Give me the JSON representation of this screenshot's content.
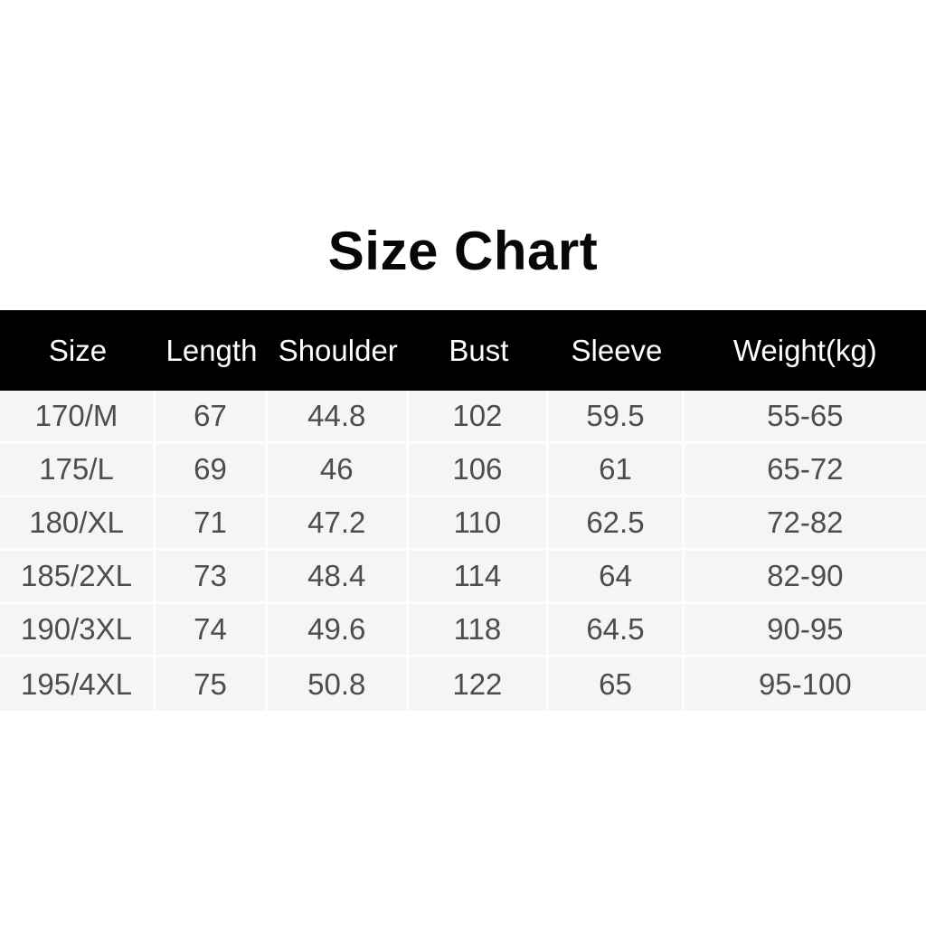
{
  "title": "Size Chart",
  "colors": {
    "page_background": "#ffffff",
    "header_background": "#000000",
    "header_text": "#ffffff",
    "row_background": "#f5f5f6",
    "cell_text": "#4d4d4d",
    "title_text": "#070707",
    "divider": "#fdfdfd"
  },
  "table": {
    "columns": [
      "Size",
      "Length",
      "Shoulder",
      "Bust",
      "Sleeve",
      "Weight(kg)"
    ],
    "rows": [
      [
        "170/M",
        "67",
        "44.8",
        "102",
        "59.5",
        "55-65"
      ],
      [
        "175/L",
        "69",
        "46",
        "106",
        "61",
        "65-72"
      ],
      [
        "180/XL",
        "71",
        "47.2",
        "110",
        "62.5",
        "72-82"
      ],
      [
        "185/2XL",
        "73",
        "48.4",
        "114",
        "64",
        "82-90"
      ],
      [
        "190/3XL",
        "74",
        "49.6",
        "118",
        "64.5",
        "90-95"
      ],
      [
        "195/4XL",
        "75",
        "50.8",
        "122",
        "65",
        "95-100"
      ]
    ]
  },
  "chart_data": {
    "type": "table",
    "title": "Size Chart",
    "columns": [
      "Size",
      "Length",
      "Shoulder",
      "Bust",
      "Sleeve",
      "Weight(kg)"
    ],
    "rows": [
      {
        "size": "170/M",
        "length": 67,
        "shoulder": 44.8,
        "bust": 102,
        "sleeve": 59.5,
        "weight_kg": "55-65"
      },
      {
        "size": "175/L",
        "length": 69,
        "shoulder": 46,
        "bust": 106,
        "sleeve": 61,
        "weight_kg": "65-72"
      },
      {
        "size": "180/XL",
        "length": 71,
        "shoulder": 47.2,
        "bust": 110,
        "sleeve": 62.5,
        "weight_kg": "72-82"
      },
      {
        "size": "185/2XL",
        "length": 73,
        "shoulder": 48.4,
        "bust": 114,
        "sleeve": 64,
        "weight_kg": "82-90"
      },
      {
        "size": "190/3XL",
        "length": 74,
        "shoulder": 49.6,
        "bust": 118,
        "sleeve": 64.5,
        "weight_kg": "90-95"
      },
      {
        "size": "195/4XL",
        "length": 75,
        "shoulder": 50.8,
        "bust": 122,
        "sleeve": 65,
        "weight_kg": "95-100"
      }
    ],
    "layout": {
      "header_style": "black bar, white text",
      "body_style": "light gray cells with white dividers",
      "alignment": "center"
    }
  }
}
